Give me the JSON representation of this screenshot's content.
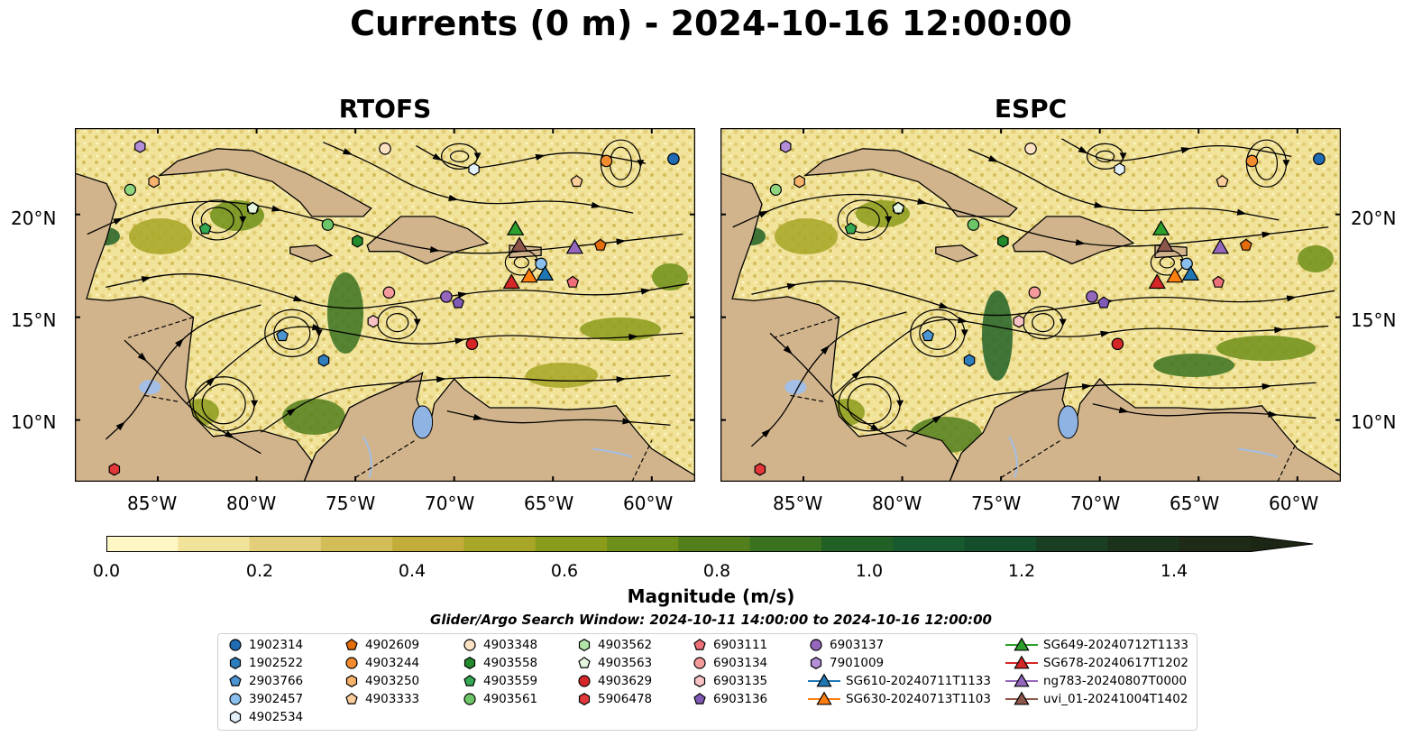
{
  "title": "Currents (0 m) - 2024-10-16 12:00:00",
  "panels": [
    {
      "title": "RTOFS",
      "variant": 0
    },
    {
      "title": "ESPC",
      "variant": 1
    }
  ],
  "lat_ticks": [
    "20°N",
    "15°N",
    "10°N"
  ],
  "lon_ticks": [
    "85°W",
    "80°W",
    "75°W",
    "70°W",
    "65°W",
    "60°W"
  ],
  "colorbar": {
    "label": "Magnitude (m/s)",
    "ticks": [
      "0.0",
      "0.2",
      "0.4",
      "0.6",
      "0.8",
      "1.0",
      "1.2",
      "1.4"
    ],
    "colors": [
      "#fdf7c6",
      "#f2e39b",
      "#e3ce79",
      "#d3bd58",
      "#c2ac3a",
      "#a7a626",
      "#8b9b1b",
      "#6e8f19",
      "#527f1c",
      "#3a7220",
      "#226126",
      "#185a30",
      "#144e2a",
      "#1a3f22",
      "#1b331b",
      "#1f2a17"
    ]
  },
  "search_window": "Glider/Argo Search Window: 2024-10-11 14:00:00 to 2024-10-16 12:00:00",
  "colors": {
    "land": "#d2b48c",
    "water": "#8fb4e3",
    "rivers": "#a3bfe6"
  },
  "legend": [
    {
      "label": "1902314",
      "shape": "circle",
      "color": "#1f6bb4"
    },
    {
      "label": "1902522",
      "shape": "hexagon",
      "color": "#2f7fbf"
    },
    {
      "label": "2903766",
      "shape": "pentagon",
      "color": "#4b95d3"
    },
    {
      "label": "3902457",
      "shape": "circle",
      "color": "#89c0ee"
    },
    {
      "label": "4902534",
      "shape": "hexagon",
      "color": "#e4f1fb"
    },
    {
      "label": "4902609",
      "shape": "pentagon",
      "color": "#e46c0a"
    },
    {
      "label": "4903244",
      "shape": "circle",
      "color": "#f28b2e"
    },
    {
      "label": "4903250",
      "shape": "hexagon",
      "color": "#f7b26b"
    },
    {
      "label": "4903333",
      "shape": "pentagon",
      "color": "#fbcd9a"
    },
    {
      "label": "4903348",
      "shape": "circle",
      "color": "#fde3c4"
    },
    {
      "label": "4903558",
      "shape": "hexagon",
      "color": "#238b2b"
    },
    {
      "label": "4903559",
      "shape": "pentagon",
      "color": "#34a853"
    },
    {
      "label": "4903561",
      "shape": "circle",
      "color": "#6cc667"
    },
    {
      "label": "4903562",
      "shape": "hexagon",
      "color": "#b2e5a8"
    },
    {
      "label": "4903563",
      "shape": "pentagon",
      "color": "#e4f7de"
    },
    {
      "label": "4903629",
      "shape": "circle",
      "color": "#d62728"
    },
    {
      "label": "5906478",
      "shape": "hexagon",
      "color": "#e3383b"
    },
    {
      "label": "6903111",
      "shape": "pentagon",
      "color": "#ef6f78"
    },
    {
      "label": "6903134",
      "shape": "circle",
      "color": "#f49a9a"
    },
    {
      "label": "6903135",
      "shape": "hexagon",
      "color": "#f9c3c6"
    },
    {
      "label": "6903136",
      "shape": "pentagon",
      "color": "#7f5ab6"
    },
    {
      "label": "6903137",
      "shape": "circle",
      "color": "#9467bd"
    },
    {
      "label": "7901009",
      "shape": "hexagon",
      "color": "#b48ed8"
    },
    {
      "label": "SG610-20240711T1133",
      "shape": "triangle",
      "color": "#1f77b4"
    },
    {
      "label": "SG630-20240713T1103",
      "shape": "triangle",
      "color": "#ff7f0e"
    },
    {
      "label": "SG649-20240712T1133",
      "shape": "triangle",
      "color": "#2ca02c"
    },
    {
      "label": "SG678-20240617T1202",
      "shape": "triangle",
      "color": "#d62728"
    },
    {
      "label": "ng783-20240807T0000",
      "shape": "triangle",
      "color": "#9467bd"
    },
    {
      "label": "uvi_01-20241004T1402",
      "shape": "triangle",
      "color": "#8c564b"
    }
  ]
}
